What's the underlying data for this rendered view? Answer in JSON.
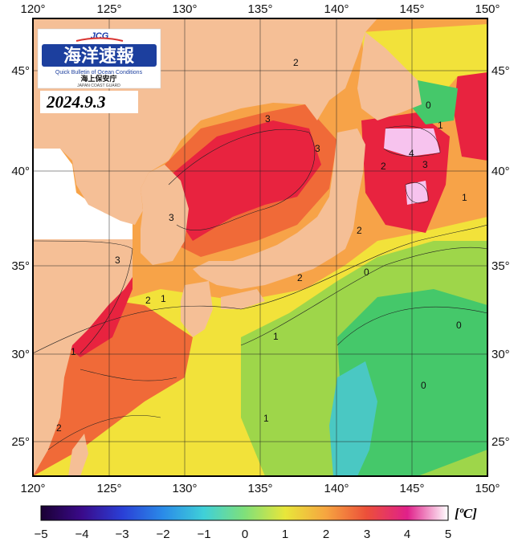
{
  "logo": {
    "acronym": "JCG",
    "title_jp": "海洋速報",
    "subtitle_en": "Quick Bulletin of Ocean Conditions",
    "agency_jp": "海上保安庁",
    "agency_en": "JAPAN COAST GUARD"
  },
  "date": "2024.9.3",
  "axes": {
    "lon_ticks": [
      "120°",
      "125°",
      "130°",
      "135°",
      "140°",
      "145°",
      "150°"
    ],
    "lat_ticks": [
      "45°",
      "40°",
      "35°",
      "30°",
      "25°"
    ]
  },
  "colorbar": {
    "unit": "[ºC]",
    "ticks": [
      "−5",
      "−4",
      "−3",
      "−2",
      "−1",
      "0",
      "1",
      "2",
      "3",
      "4",
      "5"
    ],
    "range": [
      -5,
      5
    ]
  },
  "contour_labels": [
    "2",
    "3",
    "3",
    "0",
    "1",
    "2",
    "4",
    "3",
    "1",
    "3",
    "3",
    "2",
    "0",
    "2",
    "1",
    "2",
    "1",
    "1",
    "0",
    "0",
    "1",
    "2"
  ],
  "colors": {
    "land": "#F5BF96",
    "no_data": "#FFFFFF",
    "anom_pos_strong": "#E8233F",
    "anom_pos_mid": "#F06A38",
    "anom_pos_low": "#F7A348",
    "anom_weak": "#F2E23A",
    "anom_zero": "#9ED64A",
    "anom_neg": "#45C86A",
    "anom_cold": "#4AC8C3",
    "anom_max": "#F7C3EE"
  }
}
